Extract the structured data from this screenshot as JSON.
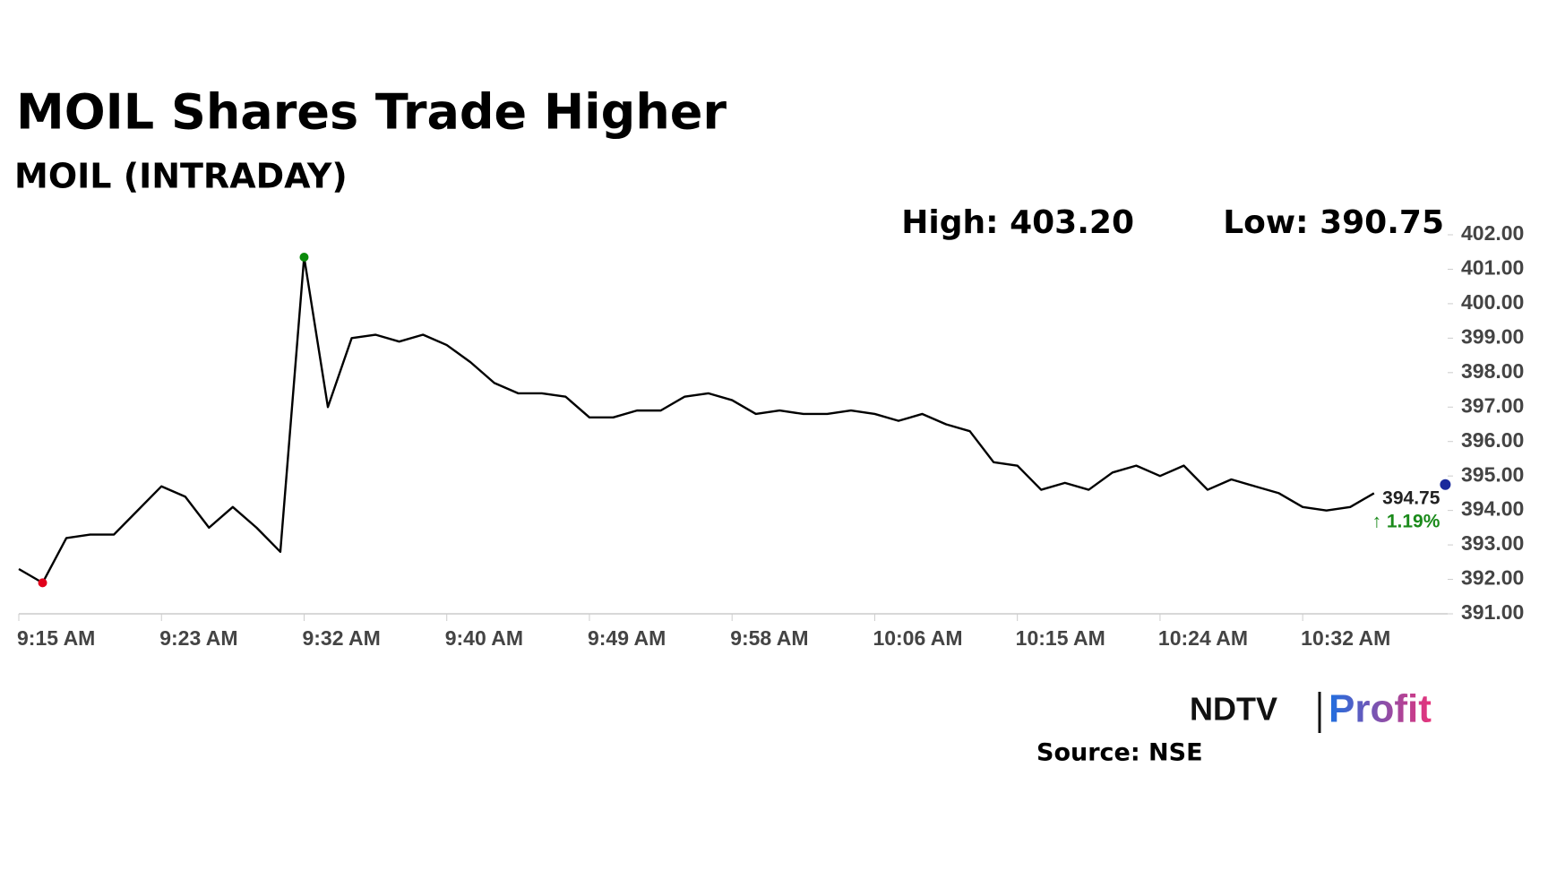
{
  "chart_data": {
    "type": "line",
    "title": "MOIL Shares Trade Higher",
    "subtitle": "MOIL (INTRADAY)",
    "high_label": "High: 403.20",
    "low_label": "Low: 390.75",
    "change_label": "↑ 1.19%",
    "change_color": "#1a8a1a",
    "source": "Source: NSE",
    "logo_left": "NDTV",
    "logo_right": "Profit",
    "categories": [
      "9:15 AM",
      null,
      null,
      null,
      null,
      null,
      "9:23 AM",
      null,
      null,
      null,
      null,
      null,
      "9:32 AM",
      null,
      null,
      null,
      null,
      null,
      "9:40 AM",
      null,
      null,
      null,
      null,
      null,
      "9:49 AM",
      null,
      null,
      null,
      null,
      null,
      "9:58 AM",
      null,
      null,
      null,
      null,
      null,
      "10:06 AM",
      null,
      null,
      null,
      null,
      null,
      "10:15 AM",
      null,
      null,
      null,
      null,
      null,
      "10:24 AM",
      null,
      null,
      null,
      null,
      null,
      "10:32 AM",
      null,
      null,
      null,
      null,
      null,
      null
    ],
    "series": [
      {
        "color": "#000000",
        "values": [
          392.3,
          391.9,
          393.2,
          393.3,
          393.3,
          394.0,
          394.7,
          394.4,
          393.5,
          394.1,
          393.5,
          392.8,
          401.35,
          397.0,
          399.0,
          399.1,
          398.9,
          399.1,
          398.8,
          398.3,
          397.7,
          397.4,
          397.4,
          397.3,
          396.7,
          396.7,
          396.9,
          396.9,
          397.3,
          397.4,
          397.2,
          396.8,
          396.9,
          396.8,
          396.8,
          396.9,
          396.8,
          396.6,
          396.8,
          396.5,
          396.3,
          395.4,
          395.3,
          394.6,
          394.8,
          394.6,
          395.1,
          395.3,
          395.0,
          395.3,
          394.6,
          394.9,
          394.7,
          394.5,
          394.1,
          394.0,
          394.1,
          394.5,
          null,
          null,
          394.75
        ]
      }
    ],
    "low_marker_color": "#e0001b",
    "high_marker_color": "#0a8a0a",
    "last_marker_color": "#1a2a9c",
    "ylim": [
      391,
      402
    ],
    "yticks": [
      {
        "value": 391,
        "label": "391.00"
      },
      {
        "value": 392,
        "label": "392.00"
      },
      {
        "value": 393,
        "label": "393.00"
      },
      {
        "value": 394,
        "label": "394.00"
      },
      {
        "value": 395,
        "label": "395.00"
      },
      {
        "value": 396,
        "label": "396.00"
      },
      {
        "value": 397,
        "label": "397.00"
      },
      {
        "value": 398,
        "label": "398.00"
      },
      {
        "value": 399,
        "label": "399.00"
      },
      {
        "value": 400,
        "label": "400.00"
      },
      {
        "value": 401,
        "label": "401.00"
      },
      {
        "value": 402,
        "label": "402.00"
      }
    ]
  }
}
